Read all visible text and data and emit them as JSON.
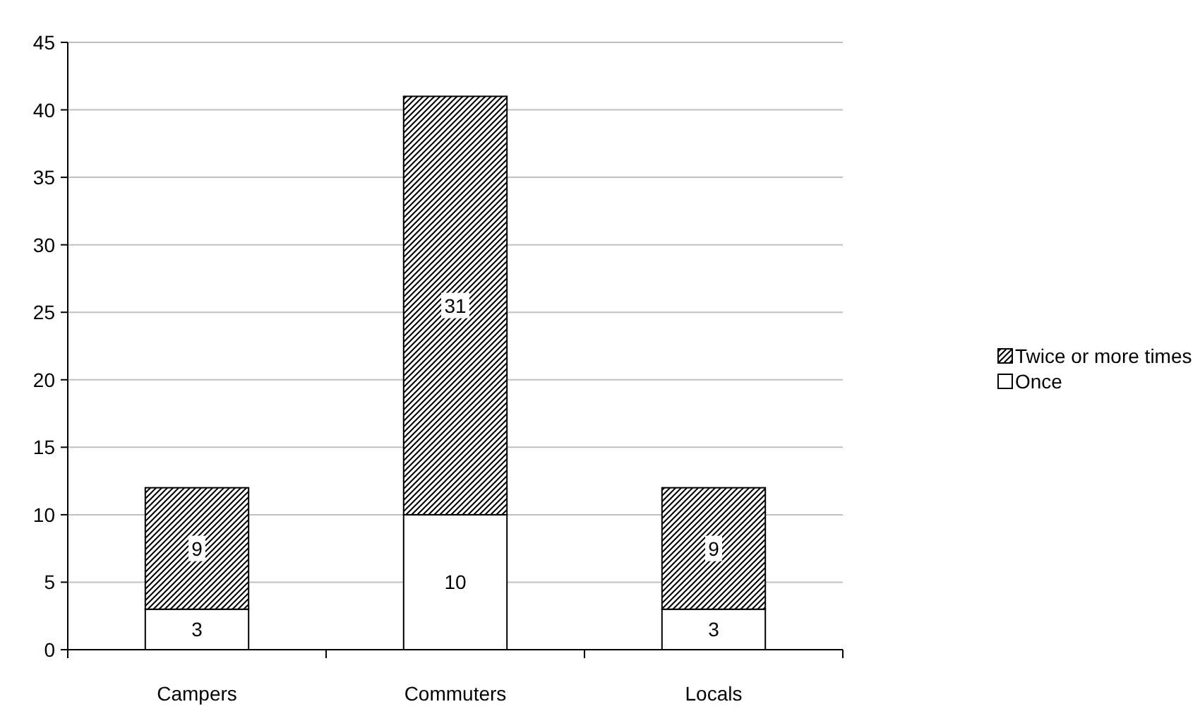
{
  "chart_data": {
    "type": "bar",
    "stacked": true,
    "categories": [
      "Campers",
      "Commuters",
      "Locals"
    ],
    "series": [
      {
        "name": "Once",
        "color": "#ffffff",
        "values": [
          3,
          10,
          3
        ]
      },
      {
        "name": "Twice or more times",
        "color": "#000000",
        "values": [
          9,
          31,
          9
        ]
      }
    ],
    "ylim": [
      0,
      45
    ],
    "yticks": [
      0,
      5,
      10,
      15,
      20,
      25,
      30,
      35,
      40,
      45
    ],
    "grid": "y",
    "legend": "right",
    "data_labels": true
  }
}
